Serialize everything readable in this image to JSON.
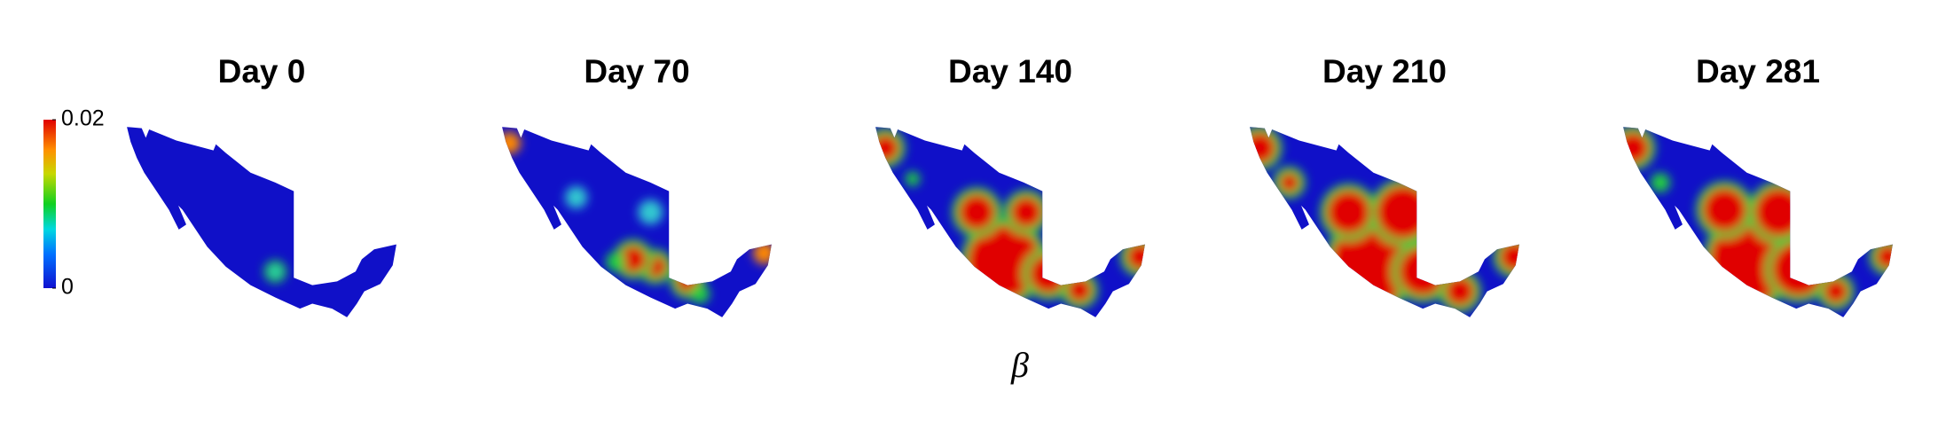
{
  "panels": [
    {
      "title": "Day 0"
    },
    {
      "title": "Day 70"
    },
    {
      "title": "Day 140"
    },
    {
      "title": "Day 210"
    },
    {
      "title": "Day 281"
    }
  ],
  "colorbar": {
    "lim": [
      0,
      0.02
    ],
    "ticks": [
      0,
      0.02
    ]
  },
  "xlabel": "β"
}
